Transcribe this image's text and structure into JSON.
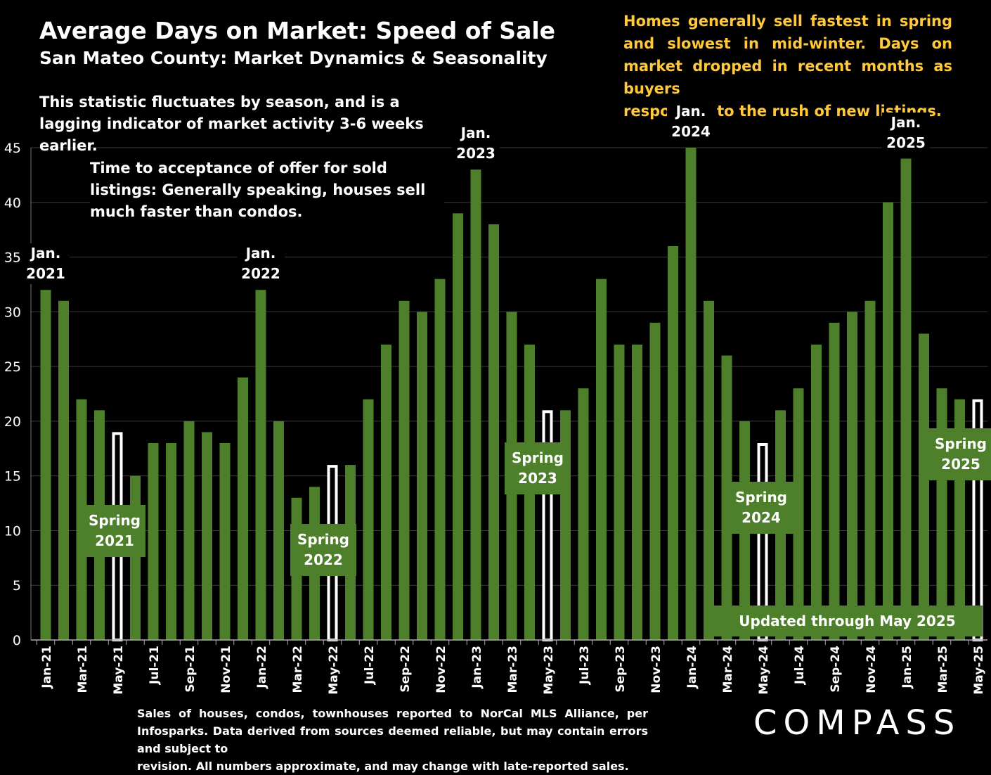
{
  "title": "Average Days on Market:  Speed of Sale",
  "subtitle": "San Mateo County: Market Dynamics & Seasonality",
  "note_seasonal": "This statistic fluctuates by season, and is a lagging indicator of market activity 3-6 weeks earlier.",
  "note_yellow_main": "Homes generally sell fastest in spring and slowest in mid-winter. Days on market dropped in recent months as buyers",
  "note_yellow_last": "responded to the rush of new listings.",
  "note_acceptance": "Time to acceptance of offer for sold listings: Generally speaking, houses sell much faster than condos.",
  "updated_label": "Updated through May 2025",
  "footer_main": "Sales of houses, condos, townhouses reported to NorCal MLS Alliance, per Infosparks. Data derived from sources deemed reliable, but may contain errors and subject to",
  "footer_last": "revision. All numbers approximate, and may change with late-reported sales.",
  "logo": "COMPASS",
  "colors": {
    "bar": "#4E7F2B",
    "highlight_bar": "#FFFFFF",
    "background": "#000000",
    "annotation_yellow": "#FFC83D"
  },
  "jan_labels": [
    {
      "text1": "Jan.",
      "text2": "2021",
      "index": 0
    },
    {
      "text1": "Jan.",
      "text2": "2022",
      "index": 12
    },
    {
      "text1": "Jan.",
      "text2": "2023",
      "index": 24
    },
    {
      "text1": "Jan.",
      "text2": "2024",
      "index": 36
    },
    {
      "text1": "Jan.",
      "text2": "2025",
      "index": 48
    }
  ],
  "spring_labels": [
    {
      "text1": "Spring",
      "text2": "2021",
      "index": 4
    },
    {
      "text1": "Spring",
      "text2": "2022",
      "index": 16
    },
    {
      "text1": "Spring",
      "text2": "2023",
      "index": 28
    },
    {
      "text1": "Spring",
      "text2": "2024",
      "index": 40
    },
    {
      "text1": "Spring",
      "text2": "2025",
      "index": 52
    }
  ],
  "chart_data": {
    "type": "bar",
    "ylim": [
      0,
      45
    ],
    "yticks": [
      0,
      5,
      10,
      15,
      20,
      25,
      30,
      35,
      40,
      45
    ],
    "grid": true,
    "categories": [
      "Jan-21",
      "Feb-21",
      "Mar-21",
      "Apr-21",
      "May-21",
      "Jun-21",
      "Jul-21",
      "Aug-21",
      "Sep-21",
      "Oct-21",
      "Nov-21",
      "Dec-21",
      "Jan-22",
      "Feb-22",
      "Mar-22",
      "Apr-22",
      "May-22",
      "Jun-22",
      "Jul-22",
      "Aug-22",
      "Sep-22",
      "Oct-22",
      "Nov-22",
      "Dec-22",
      "Jan-23",
      "Feb-23",
      "Mar-23",
      "Apr-23",
      "May-23",
      "Jun-23",
      "Jul-23",
      "Aug-23",
      "Sep-23",
      "Oct-23",
      "Nov-23",
      "Dec-23",
      "Jan-24",
      "Feb-24",
      "Mar-24",
      "Apr-24",
      "May-24",
      "Jun-24",
      "Jul-24",
      "Aug-24",
      "Sep-24",
      "Oct-24",
      "Nov-24",
      "Dec-24",
      "Jan-25",
      "Feb-25",
      "Mar-25",
      "Apr-25",
      "May-25"
    ],
    "values": [
      32,
      31,
      22,
      21,
      19,
      15,
      18,
      18,
      20,
      19,
      18,
      24,
      32,
      20,
      13,
      14,
      16,
      16,
      22,
      27,
      31,
      30,
      33,
      39,
      43,
      38,
      30,
      27,
      21,
      21,
      23,
      33,
      27,
      27,
      29,
      36,
      45,
      31,
      26,
      20,
      18,
      21,
      23,
      27,
      29,
      30,
      31,
      40,
      44,
      28,
      23,
      22,
      22
    ],
    "highlighted_indices": [
      4,
      16,
      28,
      40,
      52
    ],
    "tick_labels": [
      "Jan-21",
      "Mar-21",
      "May-21",
      "Jul-21",
      "Sep-21",
      "Nov-21",
      "Jan-22",
      "Mar-22",
      "May-22",
      "Jul-22",
      "Sep-22",
      "Nov-22",
      "Jan-23",
      "Mar-23",
      "May-23",
      "Jul-23",
      "Sep-23",
      "Nov-23",
      "Jan-24",
      "Mar-24",
      "May-24",
      "Jul-24",
      "Sep-24",
      "Nov-24",
      "Jan-25",
      "Mar-25",
      "May-25"
    ],
    "tick_label_indices": [
      0,
      2,
      4,
      6,
      8,
      10,
      12,
      14,
      16,
      18,
      20,
      22,
      24,
      26,
      28,
      30,
      32,
      34,
      36,
      38,
      40,
      42,
      44,
      46,
      48,
      50,
      52
    ]
  }
}
